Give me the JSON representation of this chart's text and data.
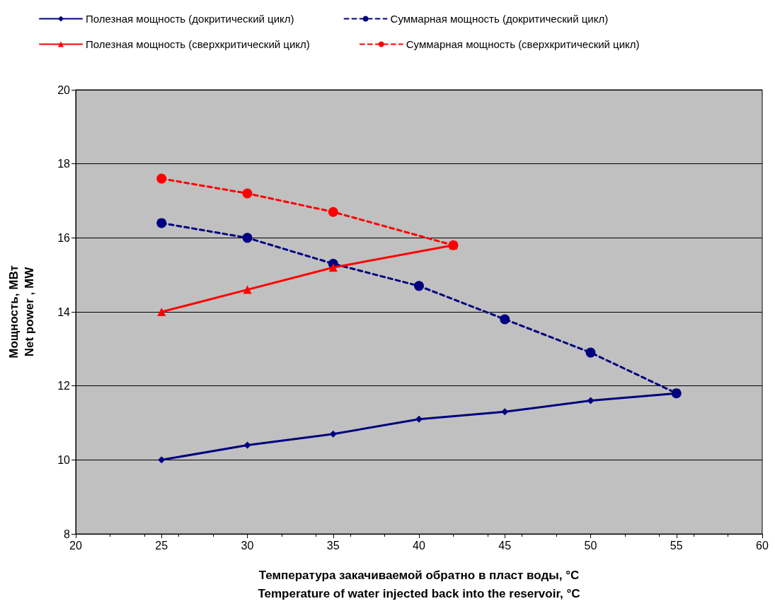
{
  "chart_data": {
    "type": "line",
    "xlabel": "Температура закачиваемой обратно в пласт воды, °C\nTemperature of water injected back into the reservoir, °C",
    "ylabel": "Мощность, МВт\nNet power , MW",
    "xlim": [
      20,
      60
    ],
    "xticks": [
      20,
      25,
      30,
      35,
      40,
      45,
      50,
      55,
      60
    ],
    "ylim": [
      8,
      20
    ],
    "yticks": [
      8,
      10,
      12,
      14,
      16,
      18,
      20
    ],
    "grid": "y",
    "legend": "top",
    "series": [
      {
        "name": "Полезная мощность (докритический цикл)",
        "color": "#000080",
        "marker": "diamond",
        "line_style": "solid",
        "x": [
          25,
          30,
          35,
          40,
          45,
          50,
          55
        ],
        "values": [
          10.0,
          10.4,
          10.7,
          11.1,
          11.3,
          11.6,
          11.8
        ]
      },
      {
        "name": "Суммарная мощность (докритический цикл)",
        "color": "#000080",
        "marker": "circle",
        "line_style": "dashed",
        "x": [
          25,
          30,
          35,
          40,
          45,
          50,
          55
        ],
        "values": [
          16.4,
          16.0,
          15.3,
          14.7,
          13.8,
          12.9,
          11.8
        ]
      },
      {
        "name": "Полезная мощность (сверхкритический цикл)",
        "color": "#ff0000",
        "marker": "triangle",
        "line_style": "solid",
        "x": [
          25,
          30,
          35,
          42
        ],
        "values": [
          14.0,
          14.6,
          15.2,
          15.8
        ]
      },
      {
        "name": "Суммарная мощность (сверхкритический цикл)",
        "color": "#ff0000",
        "marker": "circle",
        "line_style": "dashed",
        "x": [
          25,
          30,
          35,
          42
        ],
        "values": [
          17.6,
          17.2,
          16.7,
          15.8
        ]
      }
    ]
  }
}
